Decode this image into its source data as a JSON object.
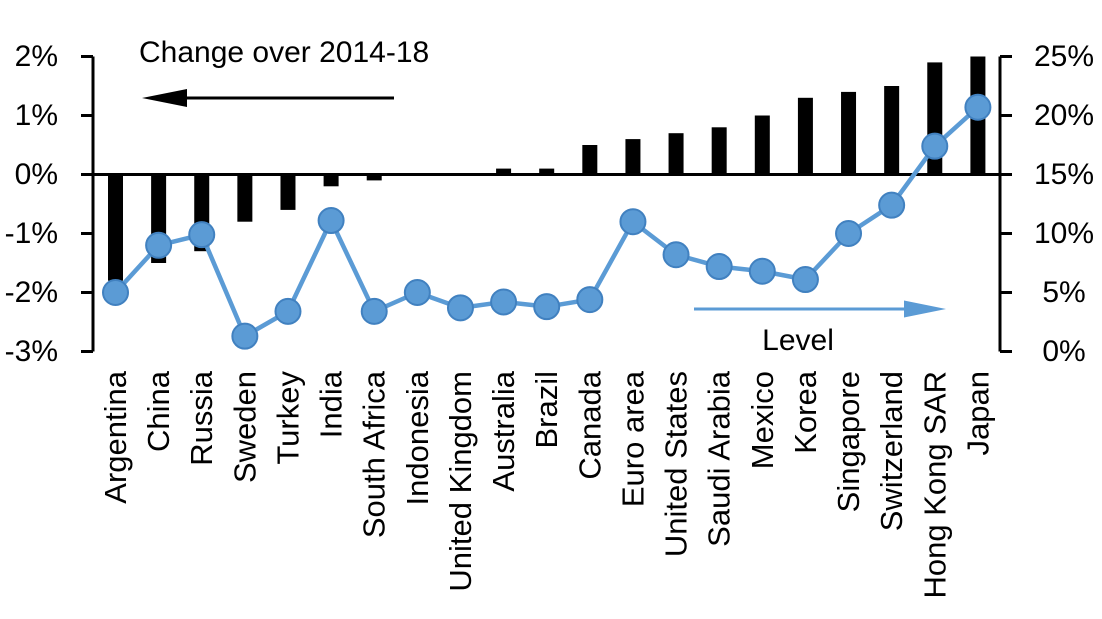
{
  "chart_data": {
    "type": "combo-bar-line",
    "title": "",
    "annotations": {
      "left_series_label": "Change over 2014-18",
      "right_series_label": "Level",
      "left_arrow_direction": "left",
      "right_arrow_direction": "right"
    },
    "categories": [
      "Argentina",
      "China",
      "Russia",
      "Sweden",
      "Turkey",
      "India",
      "South Africa",
      "Indonesia",
      "United Kingdom",
      "Australia",
      "Brazil",
      "Canada",
      "Euro area",
      "United States",
      "Saudi Arabia",
      "Mexico",
      "Korea",
      "Singapore",
      "Switzerland",
      "Hong Kong SAR",
      "Japan"
    ],
    "series": [
      {
        "name": "Change over 2014-18",
        "type": "bar",
        "axis": "left",
        "unit": "%",
        "values": [
          -1.8,
          -1.5,
          -1.3,
          -0.8,
          -0.6,
          -0.2,
          -0.1,
          0,
          0,
          0.1,
          0.1,
          0.5,
          0.6,
          0.7,
          0.8,
          1.0,
          1.3,
          1.4,
          1.5,
          1.9,
          2.0
        ]
      },
      {
        "name": "Level",
        "type": "line",
        "axis": "right",
        "unit": "%",
        "values": [
          5.0,
          9.0,
          9.9,
          1.3,
          3.4,
          11.1,
          3.4,
          5.0,
          3.7,
          4.2,
          3.8,
          4.4,
          11.0,
          8.2,
          7.2,
          6.8,
          6.1,
          10.0,
          12.4,
          17.4,
          20.7
        ]
      }
    ],
    "left_axis": {
      "min": -3,
      "max": 2,
      "tick_values": [
        2,
        1,
        0,
        -1,
        -2,
        -3
      ],
      "tick_labels": [
        "2%",
        "1%",
        "0%",
        "-1%",
        "-2%",
        "-3%"
      ]
    },
    "right_axis": {
      "min": 0,
      "max": 25,
      "tick_values": [
        25,
        20,
        15,
        10,
        5,
        0
      ],
      "tick_labels": [
        "25%",
        "20%",
        "15%",
        "10%",
        "5%",
        "0%"
      ]
    },
    "colors": {
      "bar": "#000000",
      "line": "#5B9BD5",
      "marker_fill": "#5B9BD5",
      "marker_stroke": "#4181C0",
      "axis": "#000000",
      "text": "#000000",
      "background": "#FFFFFF"
    },
    "legend": "none",
    "grid": false
  }
}
